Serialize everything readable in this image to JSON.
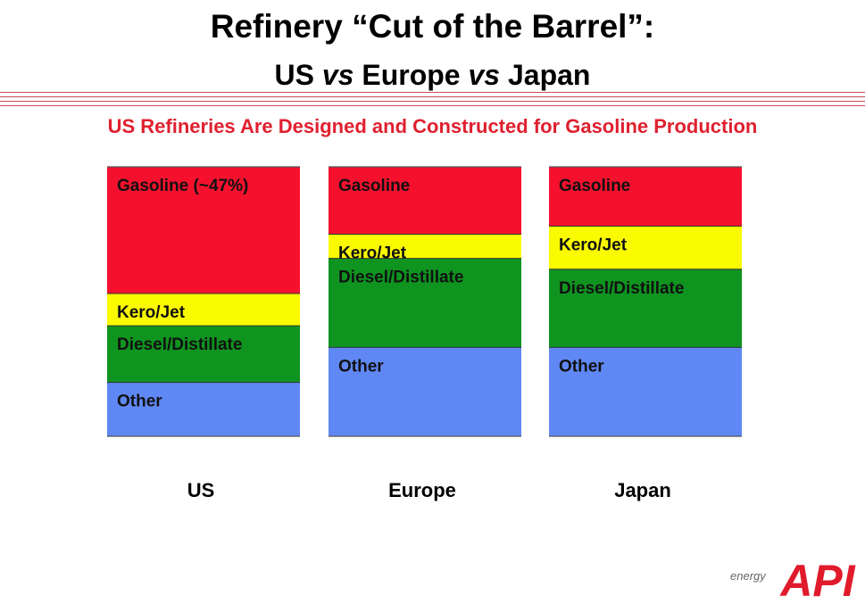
{
  "title": "Refinery “Cut of the Barrel”:",
  "subtitle": {
    "part1": "US ",
    "vs1": "vs",
    "part2": " Europe ",
    "vs2": "vs",
    "part3": " Japan"
  },
  "headline": "US Refineries Are Designed and Constructed for Gasoline Production",
  "logo": {
    "word": "energy",
    "mark": "API"
  },
  "colors": {
    "gasoline": "#f5112e",
    "kero_jet": "#fafa00",
    "diesel_distillate": "#0f9420",
    "other": "#6088f5",
    "headline": "#e0202f",
    "logo": "#e01b2b"
  },
  "chart_data": {
    "type": "bar",
    "stacked": true,
    "orientation": "vertical",
    "categories": [
      "US",
      "Europe",
      "Japan"
    ],
    "ylim": [
      0,
      100
    ],
    "series": [
      {
        "name": "Other",
        "key": "other",
        "values": [
          20,
          33,
          33
        ],
        "labels": [
          "Other",
          "Other",
          "Other"
        ]
      },
      {
        "name": "Diesel/Distillate",
        "key": "diesel_distillate",
        "values": [
          21,
          33,
          29
        ],
        "labels": [
          "Diesel/Distillate",
          "Diesel/Distillate",
          "Diesel/Distillate"
        ]
      },
      {
        "name": "Kero/Jet",
        "key": "kero_jet",
        "values": [
          12,
          9,
          16
        ],
        "labels": [
          "Kero/Jet",
          "Kero/Jet",
          "Kero/Jet"
        ]
      },
      {
        "name": "Gasoline",
        "key": "gasoline",
        "values": [
          47,
          25,
          22
        ],
        "labels": [
          "Gasoline (~47%)",
          "Gasoline",
          "Gasoline"
        ]
      }
    ]
  }
}
